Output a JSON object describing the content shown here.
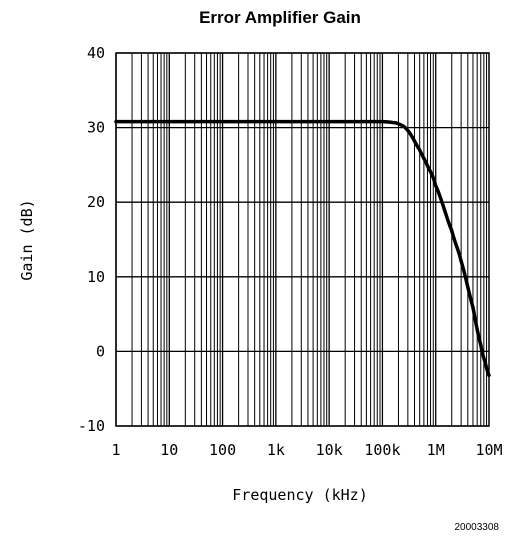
{
  "figure_code": "20003308",
  "chart_data": {
    "type": "line",
    "title": "Error Amplifier Gain",
    "xlabel": "Frequency (kHz)",
    "ylabel": "Gain (dB)",
    "x_scale": "log",
    "y_scale": "linear",
    "xlim": [
      1,
      10000000
    ],
    "ylim": [
      -10,
      40
    ],
    "x_ticks": [
      1,
      10,
      100,
      1000,
      10000,
      100000,
      1000000,
      10000000
    ],
    "x_tick_labels": [
      "1",
      "10",
      "100",
      "1k",
      "10k",
      "100k",
      "1M",
      "10M"
    ],
    "y_ticks": [
      -10,
      0,
      10,
      20,
      30,
      40
    ],
    "y_tick_labels": [
      "-10",
      "0",
      "10",
      "20",
      "30",
      "40"
    ],
    "grid": true,
    "legend": "none",
    "colors": {
      "curve": "#000000",
      "grid": "#000000",
      "background": "#ffffff"
    },
    "series": [
      {
        "x": [
          1,
          10,
          100,
          1000,
          10000,
          100000,
          150000,
          200000,
          300000,
          500000,
          700000,
          1000000,
          2000000,
          3000000,
          5000000,
          7000000,
          8500000,
          10000000
        ],
        "y": [
          30.8,
          30.8,
          30.8,
          30.8,
          30.8,
          30.8,
          30.7,
          30.5,
          29.6,
          27.0,
          24.9,
          22.2,
          16.2,
          12.1,
          5.9,
          0.9,
          -1.5,
          -3.2
        ]
      }
    ]
  }
}
